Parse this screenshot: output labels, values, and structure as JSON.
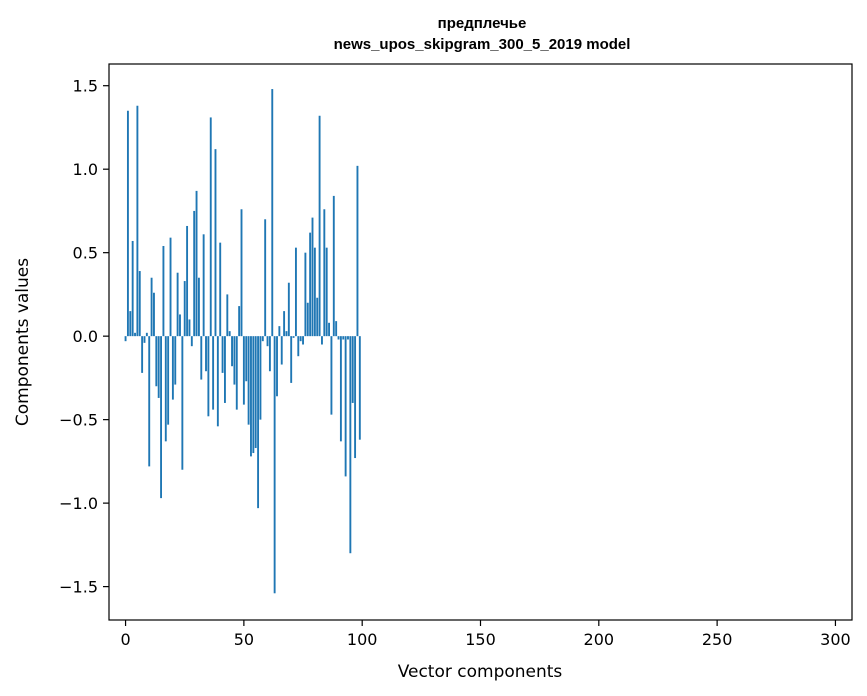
{
  "chart_data": {
    "type": "bar",
    "title": "предплечье",
    "subtitle": "news_upos_skipgram_300_5_2019 model",
    "xlabel": "Vector components",
    "ylabel": "Components values",
    "xlim": [
      -7,
      307
    ],
    "ylim": [
      -1.7,
      1.63
    ],
    "x_ticks": [
      0,
      50,
      100,
      150,
      200,
      250,
      300
    ],
    "x_tick_labels": [
      "0",
      "50",
      "100",
      "150",
      "200",
      "250",
      "300"
    ],
    "y_ticks": [
      1.5,
      1.0,
      0.5,
      0.0,
      -0.5,
      -1.0,
      -1.5
    ],
    "y_tick_labels": [
      "1.5",
      "1.0",
      "0.5",
      "0.0",
      "−0.5",
      "−1.0",
      "−1.5"
    ],
    "bar_color": "#1f77b4",
    "values": [
      -0.03,
      1.35,
      0.15,
      0.57,
      0.02,
      1.38,
      0.39,
      -0.22,
      -0.04,
      0.02,
      -0.78,
      0.35,
      0.26,
      -0.3,
      -0.37,
      -0.97,
      0.54,
      -0.63,
      -0.53,
      0.59,
      -0.38,
      -0.29,
      0.38,
      0.13,
      -0.8,
      0.33,
      0.66,
      0.1,
      -0.06,
      0.75,
      0.87,
      0.35,
      -0.26,
      0.61,
      -0.21,
      -0.48,
      1.31,
      -0.44,
      1.12,
      -0.54,
      0.56,
      -0.22,
      -0.4,
      0.25,
      0.03,
      -0.18,
      -0.29,
      -0.44,
      0.18,
      0.76,
      -0.41,
      -0.27,
      -0.53,
      -0.72,
      -0.7,
      -0.67,
      -1.03,
      -0.5,
      -0.03,
      0.7,
      -0.06,
      -0.21,
      1.48,
      -1.54,
      -0.36,
      0.06,
      -0.17,
      0.15,
      0.03,
      0.32,
      -0.28,
      -0.01,
      0.53,
      -0.12,
      -0.03,
      -0.05,
      0.5,
      0.2,
      0.62,
      0.71,
      0.53,
      0.23,
      1.32,
      -0.05,
      0.76,
      0.53,
      0.08,
      -0.47,
      0.84,
      0.09,
      -0.02,
      -0.63,
      -0.02,
      -0.84,
      -0.02,
      -1.3,
      -0.4,
      -0.73,
      1.02,
      -0.62
    ]
  }
}
